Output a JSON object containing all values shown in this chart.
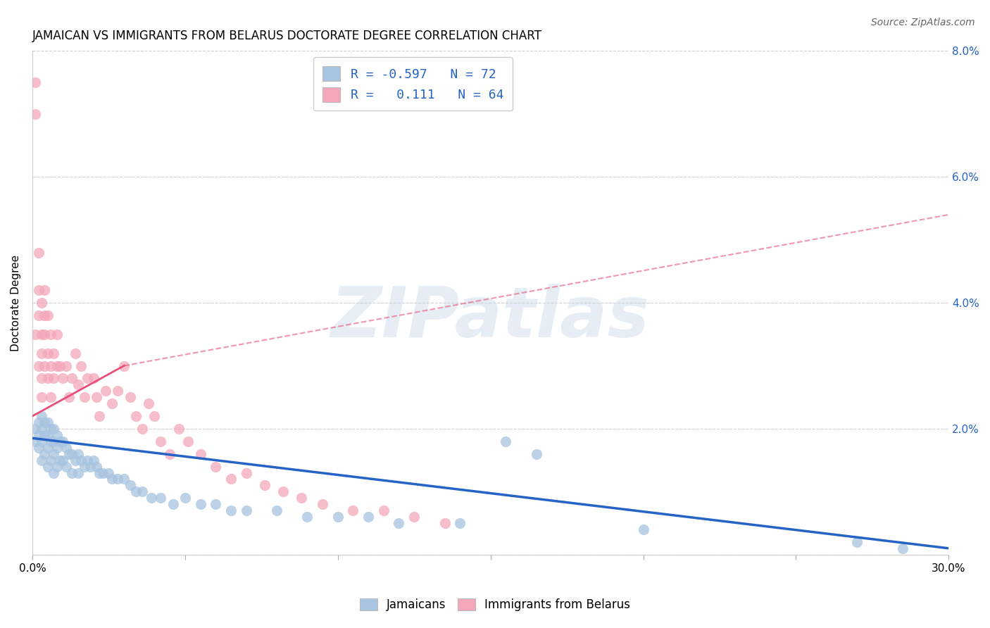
{
  "title": "JAMAICAN VS IMMIGRANTS FROM BELARUS DOCTORATE DEGREE CORRELATION CHART",
  "source": "Source: ZipAtlas.com",
  "ylabel": "Doctorate Degree",
  "xlim": [
    0.0,
    0.3
  ],
  "ylim": [
    0.0,
    0.08
  ],
  "xticks": [
    0.0,
    0.05,
    0.1,
    0.15,
    0.2,
    0.25,
    0.3
  ],
  "xticklabels": [
    "0.0%",
    "",
    "",
    "",
    "",
    "",
    "30.0%"
  ],
  "yticks": [
    0.0,
    0.02,
    0.04,
    0.06,
    0.08
  ],
  "yticklabels_right": [
    "",
    "2.0%",
    "4.0%",
    "6.0%",
    "8.0%"
  ],
  "watermark": "ZIPatlas",
  "blue_color": "#a8c4e0",
  "pink_color": "#f4a7b9",
  "blue_line_color": "#2563c7",
  "pink_line_color": "#e8507a",
  "blue_R": -0.597,
  "blue_N": 72,
  "pink_R": 0.111,
  "pink_N": 64,
  "background_color": "#ffffff",
  "grid_color": "#d0d0d0",
  "title_fontsize": 12,
  "axis_label_fontsize": 11,
  "tick_fontsize": 11,
  "blue_scatter_x": [
    0.001,
    0.001,
    0.002,
    0.002,
    0.002,
    0.003,
    0.003,
    0.003,
    0.003,
    0.004,
    0.004,
    0.004,
    0.005,
    0.005,
    0.005,
    0.005,
    0.006,
    0.006,
    0.006,
    0.007,
    0.007,
    0.007,
    0.007,
    0.008,
    0.008,
    0.008,
    0.009,
    0.009,
    0.01,
    0.01,
    0.011,
    0.011,
    0.012,
    0.013,
    0.013,
    0.014,
    0.015,
    0.015,
    0.016,
    0.017,
    0.018,
    0.019,
    0.02,
    0.021,
    0.022,
    0.023,
    0.025,
    0.026,
    0.028,
    0.03,
    0.032,
    0.034,
    0.036,
    0.039,
    0.042,
    0.046,
    0.05,
    0.055,
    0.06,
    0.065,
    0.07,
    0.08,
    0.09,
    0.1,
    0.11,
    0.12,
    0.14,
    0.155,
    0.165,
    0.2,
    0.27,
    0.285
  ],
  "blue_scatter_y": [
    0.02,
    0.018,
    0.021,
    0.019,
    0.017,
    0.022,
    0.02,
    0.018,
    0.015,
    0.021,
    0.019,
    0.016,
    0.021,
    0.019,
    0.017,
    0.014,
    0.02,
    0.018,
    0.015,
    0.02,
    0.018,
    0.016,
    0.013,
    0.019,
    0.017,
    0.014,
    0.018,
    0.015,
    0.018,
    0.015,
    0.017,
    0.014,
    0.016,
    0.016,
    0.013,
    0.015,
    0.016,
    0.013,
    0.015,
    0.014,
    0.015,
    0.014,
    0.015,
    0.014,
    0.013,
    0.013,
    0.013,
    0.012,
    0.012,
    0.012,
    0.011,
    0.01,
    0.01,
    0.009,
    0.009,
    0.008,
    0.009,
    0.008,
    0.008,
    0.007,
    0.007,
    0.007,
    0.006,
    0.006,
    0.006,
    0.005,
    0.005,
    0.018,
    0.016,
    0.004,
    0.002,
    0.001
  ],
  "pink_scatter_x": [
    0.001,
    0.001,
    0.001,
    0.002,
    0.002,
    0.002,
    0.002,
    0.003,
    0.003,
    0.003,
    0.003,
    0.003,
    0.004,
    0.004,
    0.004,
    0.004,
    0.005,
    0.005,
    0.005,
    0.006,
    0.006,
    0.006,
    0.007,
    0.007,
    0.008,
    0.008,
    0.009,
    0.01,
    0.011,
    0.012,
    0.013,
    0.014,
    0.015,
    0.016,
    0.017,
    0.018,
    0.02,
    0.021,
    0.022,
    0.024,
    0.026,
    0.028,
    0.03,
    0.032,
    0.034,
    0.036,
    0.038,
    0.04,
    0.042,
    0.045,
    0.048,
    0.051,
    0.055,
    0.06,
    0.065,
    0.07,
    0.076,
    0.082,
    0.088,
    0.095,
    0.105,
    0.115,
    0.125,
    0.135
  ],
  "pink_scatter_y": [
    0.035,
    0.07,
    0.075,
    0.038,
    0.042,
    0.048,
    0.03,
    0.035,
    0.04,
    0.032,
    0.025,
    0.028,
    0.038,
    0.042,
    0.035,
    0.03,
    0.038,
    0.032,
    0.028,
    0.035,
    0.03,
    0.025,
    0.032,
    0.028,
    0.03,
    0.035,
    0.03,
    0.028,
    0.03,
    0.025,
    0.028,
    0.032,
    0.027,
    0.03,
    0.025,
    0.028,
    0.028,
    0.025,
    0.022,
    0.026,
    0.024,
    0.026,
    0.03,
    0.025,
    0.022,
    0.02,
    0.024,
    0.022,
    0.018,
    0.016,
    0.02,
    0.018,
    0.016,
    0.014,
    0.012,
    0.013,
    0.011,
    0.01,
    0.009,
    0.008,
    0.007,
    0.007,
    0.006,
    0.005
  ],
  "blue_line_x0": 0.0,
  "blue_line_y0": 0.0185,
  "blue_line_x1": 0.3,
  "blue_line_y1": 0.001,
  "pink_line_solid_x0": 0.0,
  "pink_line_solid_y0": 0.022,
  "pink_line_solid_x1": 0.03,
  "pink_line_solid_y1": 0.03,
  "pink_line_dash_x0": 0.03,
  "pink_line_dash_y0": 0.03,
  "pink_line_dash_x1": 0.3,
  "pink_line_dash_y1": 0.054
}
